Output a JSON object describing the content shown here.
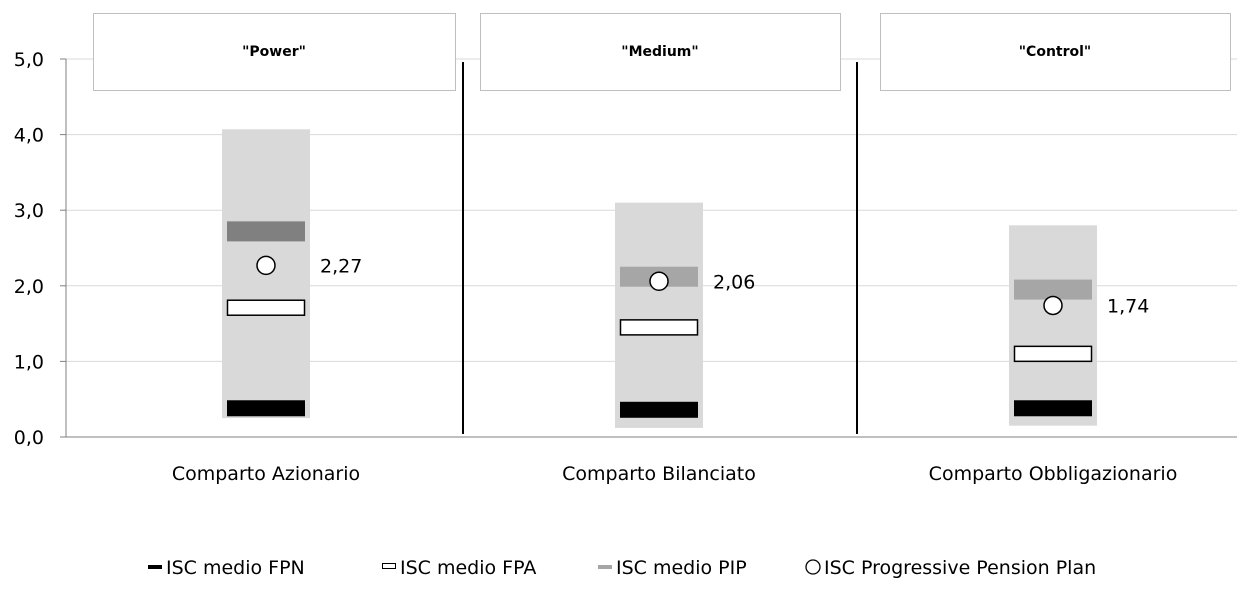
{
  "chart_data": {
    "type": "range-marker",
    "panels": [
      "\"Power\"",
      "\"Medium\"",
      "\"Control\""
    ],
    "categories": [
      "Comparto Azionario",
      "Comparto Bilanciato",
      "Comparto Obbligazionario"
    ],
    "ylim": [
      0,
      5
    ],
    "yticks": [
      "0,0",
      "1,0",
      "2,0",
      "3,0",
      "4,0",
      "5,0"
    ],
    "grid": true,
    "range_background": [
      {
        "low": 0.25,
        "high": 4.07
      },
      {
        "low": 0.12,
        "high": 3.1
      },
      {
        "low": 0.15,
        "high": 2.8
      }
    ],
    "series": [
      {
        "name": "ISC medio FPN",
        "color": "#000000",
        "values": [
          0.38,
          0.36,
          0.38
        ]
      },
      {
        "name": "ISC medio FPA",
        "color": "#ffffff",
        "values": [
          1.71,
          1.45,
          1.1
        ]
      },
      {
        "name": "ISC medio PIP",
        "color": "#808080",
        "values": [
          2.72,
          2.12,
          1.95
        ]
      },
      {
        "name": "ISC Progressive Pension Plan",
        "color": "#ffffff",
        "values": [
          2.27,
          2.06,
          1.74
        ],
        "labels": [
          "2,27",
          "2,06",
          "1,74"
        ]
      }
    ],
    "legend_position": "bottom",
    "colors": {
      "range": "#d9d9d9",
      "pip": "#808080",
      "pip_medium": "#a6a6a6",
      "grid": "#d9d9d9"
    }
  }
}
